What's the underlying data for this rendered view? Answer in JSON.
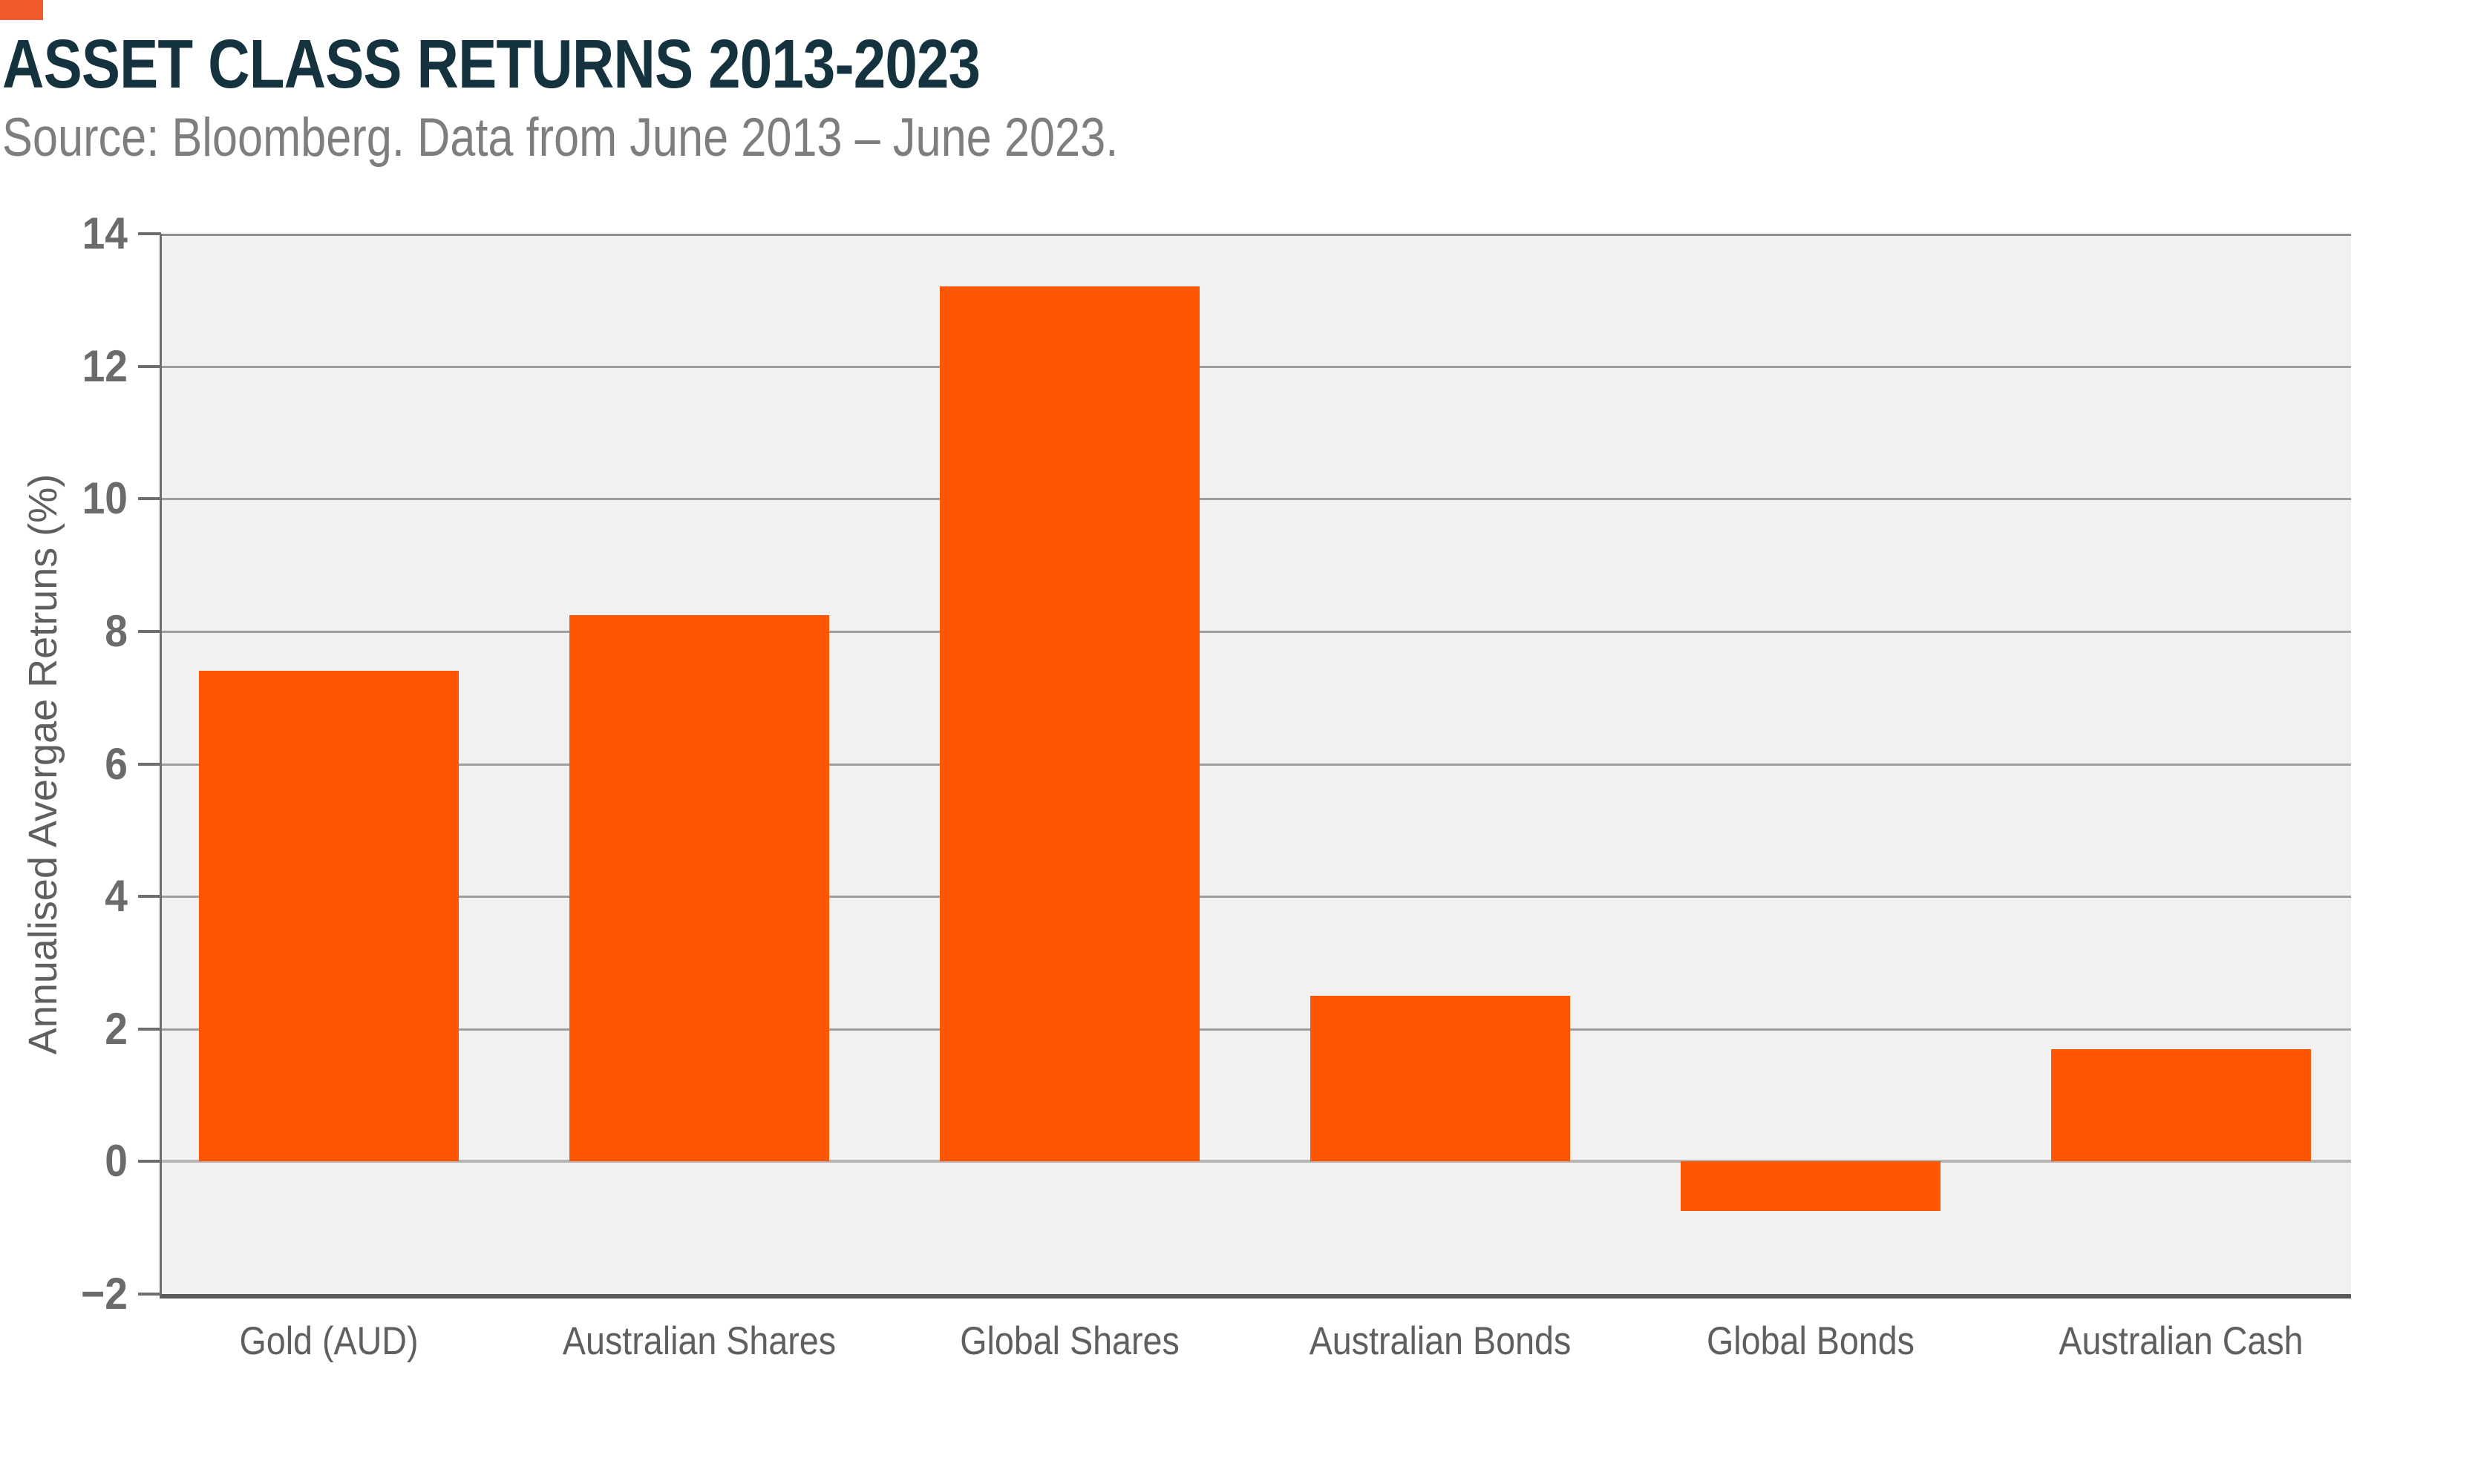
{
  "header": {
    "title": "ASSET CLASS RETURNS 2013-2023",
    "subtitle": "Source: Bloomberg. Data from June 2013 – June 2023.",
    "title_color": "#14333F",
    "subtitle_color": "#7E7E7E",
    "accent_square_color": "#F0592B"
  },
  "chart_data": {
    "type": "bar",
    "title": "ASSET CLASS RETURNS 2013-2023",
    "subtitle": "Source: Bloomberg. Data from June 2013 – June 2023.",
    "categories": [
      "Gold (AUD)",
      "Australian Shares",
      "Global Shares",
      "Australian Bonds",
      "Global Bonds",
      "Australian Cash"
    ],
    "values": [
      7.4,
      8.25,
      13.2,
      2.5,
      -0.75,
      1.7
    ],
    "xlabel": "",
    "ylabel": "Annualised Avergae Retruns (%)",
    "ylim": [
      -2,
      14
    ],
    "yticks": [
      -2,
      0,
      2,
      4,
      6,
      8,
      10,
      12,
      14
    ],
    "grid": true,
    "legend": false,
    "bar_color": "#FF5602",
    "plot_background": "#F1F1F1",
    "gridline_color": "#9E9E9E",
    "zero_line_color": "#B5B5B5",
    "axis_line_color": "#5A5A5A",
    "tick_color": "#6E6E6E",
    "tick_label_color": "#6B6B6B",
    "category_label_color": "#5F5F5F"
  }
}
